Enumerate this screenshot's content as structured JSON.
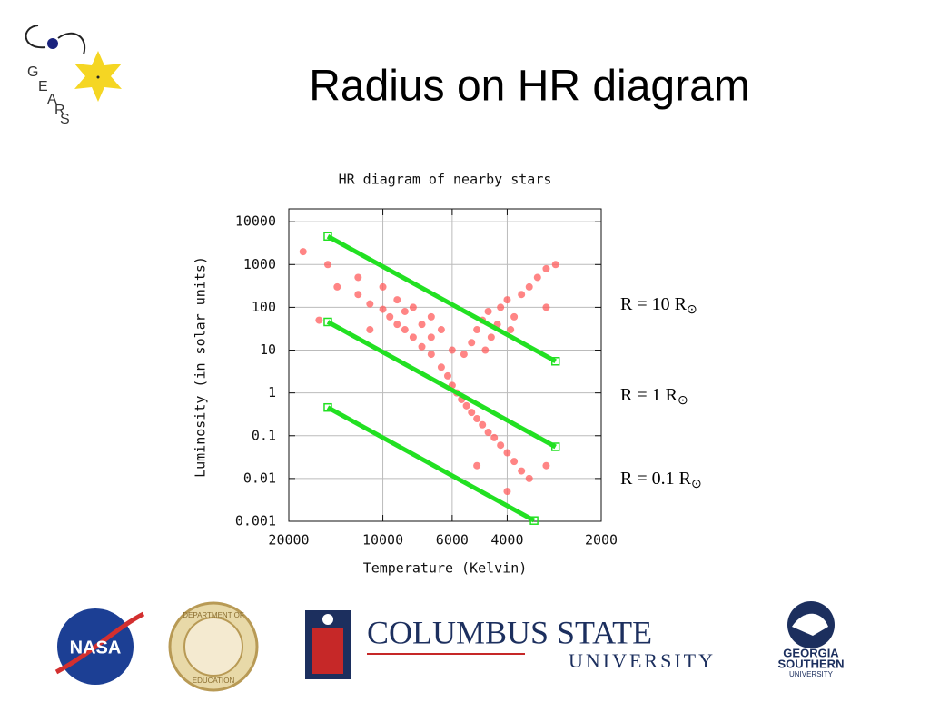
{
  "title": "Radius on HR diagram",
  "logos": {
    "gears": [
      "G",
      "E",
      "A",
      "R",
      "S"
    ],
    "nasa": "NASA",
    "education": [
      "DEPARTMENT OF",
      "EDUCATION"
    ],
    "columbus": [
      "COLUMBUS STATE",
      "UNIVERSITY"
    ],
    "georgia_southern": [
      "GEORGIA",
      "SOUTHERN",
      "UNIVERSITY"
    ]
  },
  "chart_data": {
    "type": "scatter",
    "title": "HR diagram of nearby stars",
    "x_label": "Temperature (Kelvin)",
    "y_label": "Luminosity (in solar units)",
    "x_log": true,
    "y_log": true,
    "grid": true,
    "xlim": [
      20000,
      2000
    ],
    "xticks": [
      20000,
      10000,
      6000,
      4000,
      2000
    ],
    "ylim": [
      0.001,
      20000
    ],
    "yticks": [
      0.001,
      0.01,
      0.1,
      1,
      10,
      100,
      1000,
      10000
    ],
    "series": [
      {
        "name": "stars",
        "mode": "points",
        "color": "#ff5c5c",
        "x": [
          12000,
          11000,
          10000,
          9500,
          9000,
          8500,
          8000,
          7500,
          7000,
          6500,
          6200,
          6000,
          5800,
          5600,
          5400,
          5200,
          5000,
          4800,
          4600,
          4400,
          4200,
          4000,
          3800,
          3600,
          3400,
          10000,
          9000,
          8000,
          7000,
          6500,
          8500,
          7500,
          11000,
          7000,
          6000,
          5000,
          4800,
          4600,
          4500,
          4300,
          4200,
          4000,
          3800,
          3600,
          3400,
          3200,
          3000,
          5200,
          5500,
          4700,
          3900,
          15000,
          18000,
          12000,
          14000,
          3000,
          4000,
          5000,
          3000,
          16000,
          2800
        ],
        "values": [
          200,
          120,
          90,
          60,
          40,
          30,
          20,
          12,
          8,
          4,
          2.5,
          1.5,
          1,
          0.7,
          0.5,
          0.35,
          0.25,
          0.18,
          0.12,
          0.09,
          0.06,
          0.04,
          0.025,
          0.015,
          0.01,
          300,
          150,
          100,
          60,
          30,
          80,
          40,
          30,
          20,
          10,
          30,
          50,
          80,
          20,
          40,
          100,
          150,
          60,
          200,
          300,
          500,
          800,
          15,
          8,
          10,
          30,
          1000,
          2000,
          500,
          300,
          100,
          0.005,
          0.02,
          0.02,
          50,
          1000
        ]
      },
      {
        "name": "R = 10 R",
        "mode": "line",
        "color": "#22e022",
        "x": [
          15000,
          2800
        ],
        "values": [
          4560,
          5.5
        ]
      },
      {
        "name": "R = 1 R",
        "mode": "line",
        "color": "#22e022",
        "x": [
          15000,
          2800
        ],
        "values": [
          45.6,
          0.055
        ]
      },
      {
        "name": "R = 0.1 R",
        "mode": "line",
        "color": "#22e022",
        "x": [
          15000,
          3280
        ],
        "values": [
          0.456,
          0.00104
        ]
      }
    ],
    "annotations": [
      {
        "text": "R = 10 R",
        "sub": "⊙"
      },
      {
        "text": "R =   1 R",
        "sub": "⊙"
      },
      {
        "text": "R =   0.1 R",
        "sub": "⊙"
      }
    ]
  }
}
